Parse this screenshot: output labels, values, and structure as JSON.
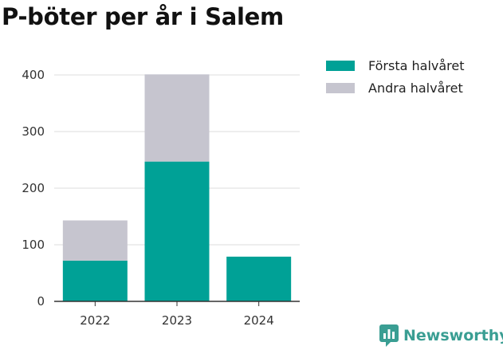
{
  "title": "P-böter per år i Salem",
  "brand": "Newsworthy",
  "chart_data": {
    "type": "bar",
    "stacked": true,
    "categories": [
      "2022",
      "2023",
      "2024"
    ],
    "series": [
      {
        "name": "Första halvåret",
        "color": "#00a196",
        "values": [
          72,
          247,
          79
        ]
      },
      {
        "name": "Andra halvåret",
        "color": "#c6c5cf",
        "values": [
          71,
          154,
          0
        ]
      }
    ],
    "ylim": [
      0,
      400
    ],
    "yticks": [
      0,
      100,
      200,
      300,
      400
    ],
    "grid": true,
    "legend": "top-right",
    "xlabel": "",
    "ylabel": ""
  }
}
